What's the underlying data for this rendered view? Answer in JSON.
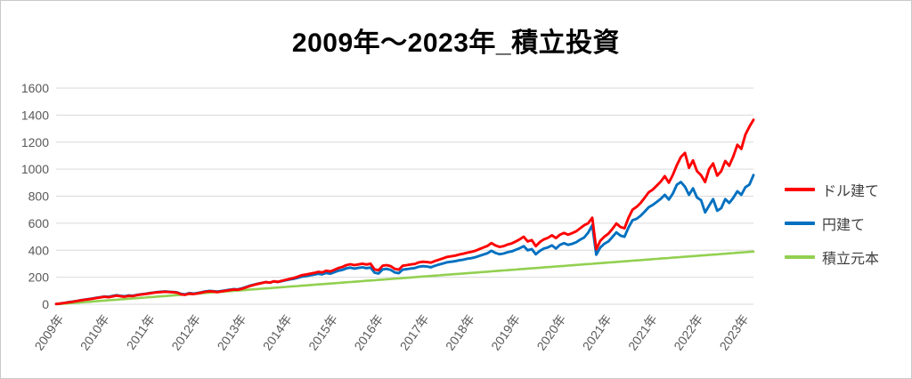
{
  "window": {
    "background": "#ffffff",
    "border_color": "#c9c9c9"
  },
  "chart": {
    "title": "2009年～2023年_積立投資",
    "title_color": "#000000",
    "gridline_color": "#d9d9d9",
    "axis_label_color": "#595959",
    "legend_text_color": "#404040"
  },
  "chart_data": {
    "type": "line",
    "title": "2009年～2023年_積立投資",
    "xlabel": "",
    "ylabel": "",
    "x_axis": {
      "unit": "month",
      "start": "2009-01",
      "end": "2023-06",
      "points": 174,
      "tick_labels": [
        "2009年",
        "2010年",
        "2011年",
        "2012年",
        "2013年",
        "2014年",
        "2015年",
        "2016年",
        "2017年",
        "2018年",
        "2019年",
        "2020年",
        "2021年",
        "2021年",
        "2022年",
        "2023年"
      ],
      "tick_label_rotation_deg": -55
    },
    "y_axis": {
      "min": 0,
      "max": 1600,
      "step": 200,
      "tick_labels": [
        "0",
        "200",
        "400",
        "600",
        "800",
        "1000",
        "1200",
        "1400",
        "1600"
      ]
    },
    "grid": "horizontal",
    "legend_position": "right",
    "series": [
      {
        "id": "usd",
        "name": "ドル建て",
        "color": "#ff0000",
        "values": [
          2,
          5,
          9,
          14,
          18,
          23,
          28,
          33,
          37,
          41,
          46,
          51,
          55,
          52,
          58,
          64,
          59,
          56,
          62,
          60,
          67,
          72,
          75,
          80,
          84,
          88,
          90,
          93,
          91,
          89,
          86,
          74,
          70,
          79,
          76,
          80,
          86,
          92,
          96,
          94,
          90,
          95,
          100,
          104,
          109,
          107,
          114,
          124,
          134,
          142,
          150,
          157,
          164,
          160,
          170,
          166,
          174,
          181,
          188,
          195,
          205,
          215,
          220,
          226,
          232,
          240,
          236,
          248,
          243,
          255,
          268,
          276,
          290,
          296,
          290,
          295,
          300,
          294,
          300,
          258,
          252,
          285,
          290,
          282,
          262,
          256,
          285,
          290,
          295,
          298,
          310,
          315,
          312,
          308,
          320,
          330,
          340,
          350,
          355,
          360,
          368,
          374,
          382,
          388,
          396,
          408,
          420,
          432,
          453,
          435,
          425,
          430,
          442,
          450,
          465,
          480,
          500,
          465,
          475,
          430,
          460,
          480,
          492,
          510,
          490,
          515,
          528,
          515,
          526,
          540,
          562,
          585,
          600,
          640,
          407,
          470,
          500,
          522,
          558,
          598,
          572,
          562,
          640,
          700,
          720,
          750,
          788,
          828,
          848,
          878,
          908,
          948,
          900,
          958,
          1030,
          1090,
          1120,
          1010,
          1065,
          985,
          955,
          905,
          1000,
          1042,
          952,
          985,
          1060,
          1025,
          1095,
          1180,
          1150,
          1255,
          1315,
          1365
        ]
      },
      {
        "id": "jpy",
        "name": "円建て",
        "color": "#0070c0",
        "values": [
          2,
          5,
          10,
          15,
          19,
          24,
          29,
          34,
          38,
          43,
          48,
          53,
          57,
          55,
          61,
          67,
          62,
          59,
          65,
          63,
          69,
          74,
          77,
          82,
          86,
          90,
          92,
          95,
          93,
          91,
          88,
          77,
          73,
          82,
          79,
          83,
          89,
          95,
          99,
          97,
          94,
          98,
          103,
          107,
          112,
          110,
          117,
          127,
          137,
          145,
          152,
          158,
          164,
          160,
          169,
          165,
          172,
          178,
          184,
          189,
          196,
          205,
          209,
          214,
          219,
          226,
          221,
          232,
          226,
          237,
          248,
          254,
          266,
          271,
          264,
          269,
          273,
          267,
          272,
          234,
          228,
          258,
          262,
          254,
          236,
          230,
          256,
          260,
          265,
          268,
          278,
          282,
          279,
          274,
          285,
          294,
          302,
          311,
          315,
          319,
          325,
          330,
          337,
          341,
          348,
          358,
          368,
          378,
          396,
          380,
          371,
          375,
          385,
          391,
          403,
          415,
          430,
          400,
          408,
          370,
          395,
          412,
          421,
          436,
          412,
          440,
          452,
          440,
          447,
          459,
          478,
          494,
          530,
          585,
          367,
          420,
          448,
          465,
          498,
          532,
          508,
          500,
          568,
          622,
          632,
          655,
          685,
          718,
          735,
          757,
          780,
          810,
          775,
          820,
          885,
          905,
          870,
          810,
          858,
          790,
          770,
          680,
          730,
          778,
          692,
          712,
          778,
          750,
          788,
          836,
          810,
          866,
          886,
          956
        ]
      },
      {
        "id": "principal",
        "name": "積立元本",
        "color": "#92d050",
        "shape": "linear",
        "start": 0,
        "end": 390
      }
    ]
  }
}
